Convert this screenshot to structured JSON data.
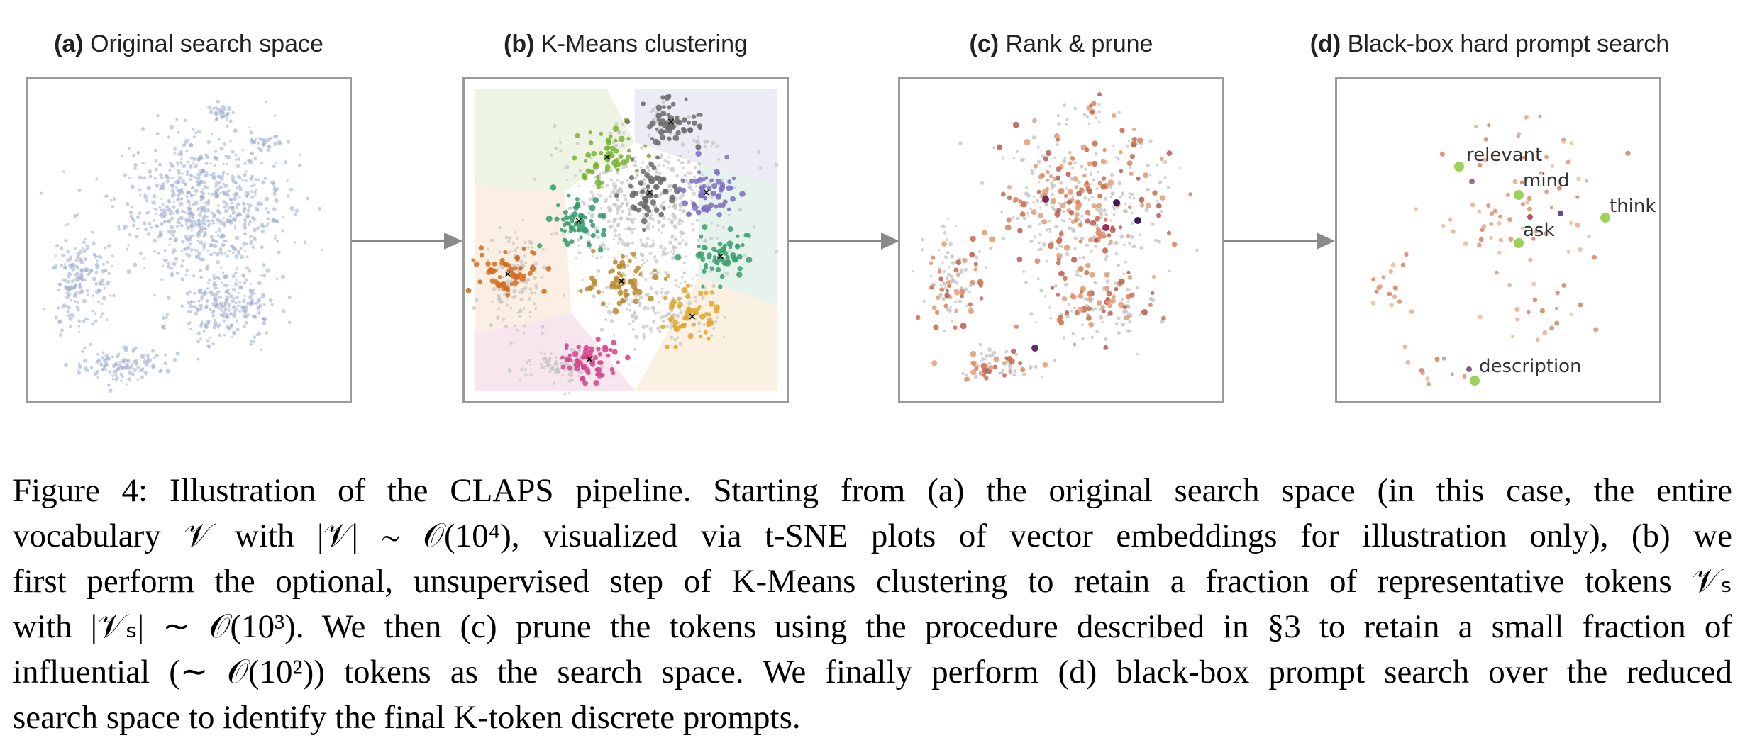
{
  "panels": [
    {
      "letter": "(a)",
      "title": "Original search space"
    },
    {
      "letter": "(b)",
      "title": "K-Means clustering"
    },
    {
      "letter": "(c)",
      "title": "Rank & prune"
    },
    {
      "letter": "(d)",
      "title": "Black-box hard prompt search"
    }
  ],
  "labeled_tokens": [
    "relevant",
    "mind",
    "think",
    "ask",
    "description"
  ],
  "colors": {
    "embedding_points": "#9aaad0",
    "gray_points": "#c4c4c4",
    "pruned_points": "#d9825a",
    "selected_tokens": "#9cd25a",
    "clusters": [
      "#d56b1f",
      "#2f9b6a",
      "#7ab230",
      "#6a6a6a",
      "#7c6fc2",
      "#b8892a",
      "#e0a82a",
      "#d8408a",
      "#3aa070"
    ]
  },
  "caption": {
    "figure_label": "Figure 4:",
    "lines": [
      "Illustration of the CLAPS pipeline. Starting from (a) the original search space (in this case, the entire",
      "vocabulary 𝒱 with |𝒱| ∼ 𝒪(10⁴), visualized via t-SNE plots of vector embeddings for illustration only), (b) we",
      "first perform the optional, unsupervised step of K-Means clustering to retain a fraction of representative tokens 𝒱ₛ",
      "with |𝒱ₛ| ∼ 𝒪(10³). We then (c) prune the tokens using the procedure described in §3 to retain a small fraction of",
      "influential (∼ 𝒪(10²)) tokens as the search space. We finally perform (d) black-box prompt search over the reduced",
      "search space to identify the final K-token discrete prompts."
    ]
  }
}
